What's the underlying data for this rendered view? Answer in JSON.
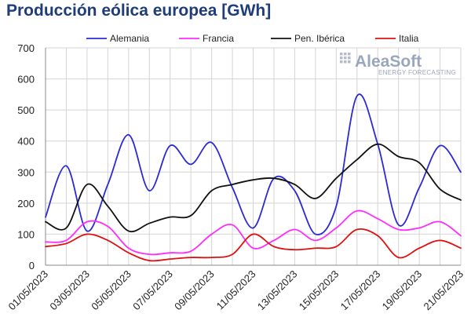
{
  "chart_data": {
    "type": "line",
    "title": "Producción eólica europea [GWh]",
    "xlabel": "",
    "ylabel": "",
    "ylim": [
      0,
      700
    ],
    "yticks": [
      0,
      100,
      200,
      300,
      400,
      500,
      600,
      700
    ],
    "x": [
      "01/05/2023",
      "02/05/2023",
      "03/05/2023",
      "04/05/2023",
      "05/05/2023",
      "06/05/2023",
      "07/05/2023",
      "08/05/2023",
      "09/05/2023",
      "10/05/2023",
      "11/05/2023",
      "12/05/2023",
      "13/05/2023",
      "14/05/2023",
      "15/05/2023",
      "16/05/2023",
      "17/05/2023",
      "18/05/2023",
      "19/05/2023",
      "20/05/2023",
      "21/05/2023"
    ],
    "xtick_labels": [
      "01/05/2023",
      "03/05/2023",
      "05/05/2023",
      "07/05/2023",
      "09/05/2023",
      "11/05/2023",
      "13/05/2023",
      "15/05/2023",
      "17/05/2023",
      "19/05/2023",
      "21/05/2023"
    ],
    "grid": true,
    "legend_position": "top",
    "series": [
      {
        "name": "Alemania",
        "color": "#2b2bd6",
        "values": [
          155,
          320,
          110,
          260,
          420,
          240,
          385,
          325,
          395,
          250,
          120,
          280,
          240,
          100,
          190,
          545,
          390,
          130,
          250,
          385,
          300
        ]
      },
      {
        "name": "Francia",
        "color": "#ff2bff",
        "values": [
          75,
          80,
          140,
          125,
          55,
          35,
          40,
          45,
          100,
          130,
          55,
          80,
          115,
          80,
          120,
          175,
          150,
          115,
          120,
          140,
          95
        ]
      },
      {
        "name": "Pen. Ibérica",
        "color": "#111111",
        "values": [
          140,
          120,
          260,
          190,
          110,
          135,
          155,
          160,
          240,
          260,
          275,
          280,
          260,
          215,
          280,
          340,
          390,
          350,
          330,
          245,
          210
        ]
      },
      {
        "name": "Italia",
        "color": "#e01010",
        "values": [
          60,
          70,
          100,
          80,
          40,
          15,
          20,
          25,
          25,
          35,
          100,
          60,
          50,
          55,
          60,
          115,
          95,
          25,
          55,
          80,
          55
        ]
      }
    ]
  },
  "logo": {
    "name": "AleaSoft",
    "tagline": "ENERGY FORECASTING"
  }
}
